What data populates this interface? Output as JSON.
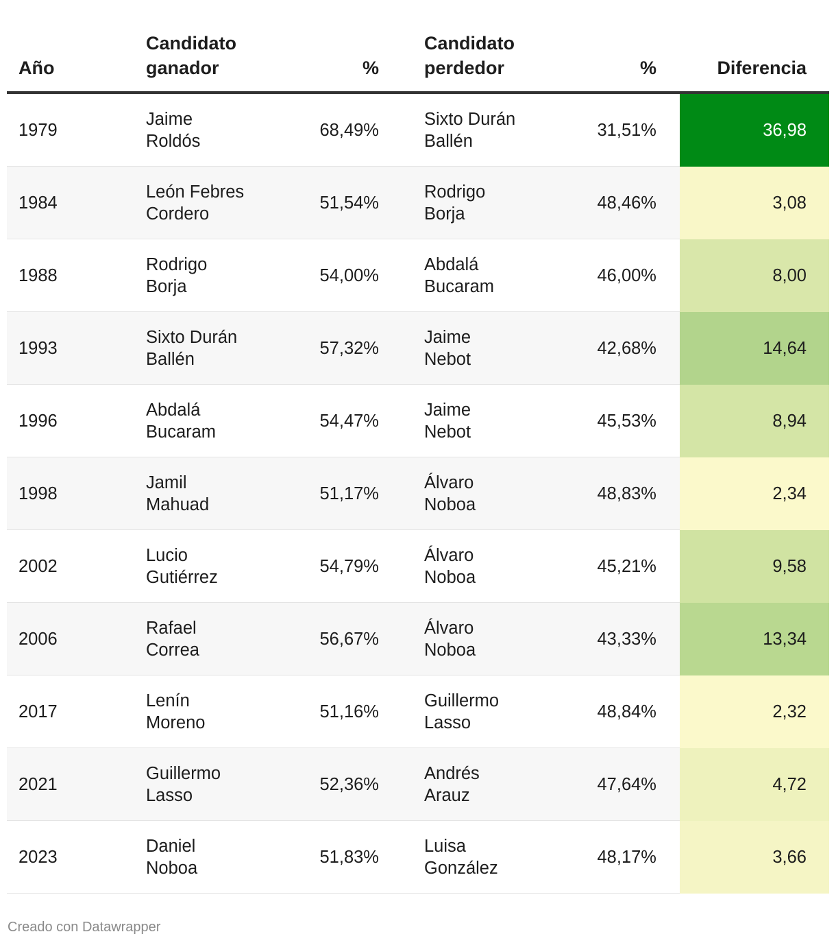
{
  "header": {
    "year": "Año",
    "winner": "Candidato\nganador",
    "winner_pct": "%",
    "loser": "Candidato\nperdedor",
    "loser_pct": "%",
    "difference": "Diferencia"
  },
  "rows": [
    {
      "year": "1979",
      "winner": "Jaime\nRoldós",
      "winner_pct": "68,49%",
      "loser": "Sixto Durán\nBallén",
      "loser_pct": "31,51%",
      "difference": "36,98",
      "color": "#008a15",
      "text_color": "#ffffff"
    },
    {
      "year": "1984",
      "winner": "León Febres\nCordero",
      "winner_pct": "51,54%",
      "loser": "Rodrigo\nBorja",
      "loser_pct": "48,46%",
      "difference": "3,08",
      "color": "#f9f7c8",
      "text_color": "#1d1d1d"
    },
    {
      "year": "1988",
      "winner": "Rodrigo\nBorja",
      "winner_pct": "54,00%",
      "loser": "Abdalá\nBucaram",
      "loser_pct": "46,00%",
      "difference": "8,00",
      "color": "#d9e7aa",
      "text_color": "#1d1d1d"
    },
    {
      "year": "1993",
      "winner": "Sixto Durán\nBallén",
      "winner_pct": "57,32%",
      "loser": "Jaime\nNebot",
      "loser_pct": "42,68%",
      "difference": "14,64",
      "color": "#b2d48c",
      "text_color": "#1d1d1d"
    },
    {
      "year": "1996",
      "winner": "Abdalá\nBucaram",
      "winner_pct": "54,47%",
      "loser": "Jaime\nNebot",
      "loser_pct": "45,53%",
      "difference": "8,94",
      "color": "#d4e5a6",
      "text_color": "#1d1d1d"
    },
    {
      "year": "1998",
      "winner": "Jamil\nMahuad",
      "winner_pct": "51,17%",
      "loser": "Álvaro\nNoboa",
      "loser_pct": "48,83%",
      "difference": "2,34",
      "color": "#fbf9cb",
      "text_color": "#1d1d1d"
    },
    {
      "year": "2002",
      "winner": "Lucio\nGutiérrez",
      "winner_pct": "54,79%",
      "loser": "Álvaro\nNoboa",
      "loser_pct": "45,21%",
      "difference": "9,58",
      "color": "#d0e3a2",
      "text_color": "#1d1d1d"
    },
    {
      "year": "2006",
      "winner": "Rafael\nCorrea",
      "winner_pct": "56,67%",
      "loser": "Álvaro\nNoboa",
      "loser_pct": "43,33%",
      "difference": "13,34",
      "color": "#b9d890",
      "text_color": "#1d1d1d"
    },
    {
      "year": "2017",
      "winner": "Lenín\nMoreno",
      "winner_pct": "51,16%",
      "loser": "Guillermo\nLasso",
      "loser_pct": "48,84%",
      "difference": "2,32",
      "color": "#fbf9cb",
      "text_color": "#1d1d1d"
    },
    {
      "year": "2021",
      "winner": "Guillermo\nLasso",
      "winner_pct": "52,36%",
      "loser": "Andrés\nArauz",
      "loser_pct": "47,64%",
      "difference": "4,72",
      "color": "#eef2bd",
      "text_color": "#1d1d1d"
    },
    {
      "year": "2023",
      "winner": "Daniel\nNoboa",
      "winner_pct": "51,83%",
      "loser": "Luisa\nGonzález",
      "loser_pct": "48,17%",
      "difference": "3,66",
      "color": "#f5f5c5",
      "text_color": "#1d1d1d"
    }
  ],
  "footer": "Creado con Datawrapper"
}
